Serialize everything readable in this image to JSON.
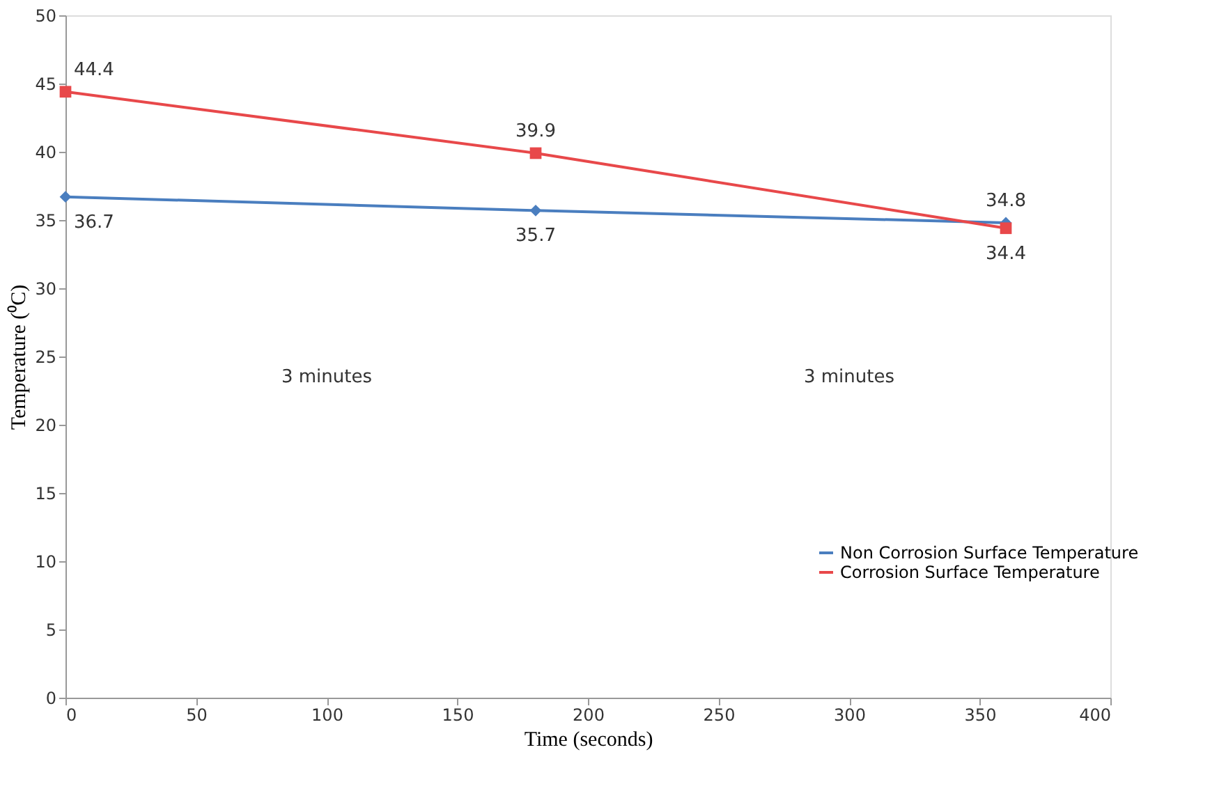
{
  "chart_data": {
    "type": "line",
    "xlabel": "Time (seconds)",
    "ylabel": "Temperature (⁰C)",
    "x": [
      0,
      180,
      360
    ],
    "series": [
      {
        "name": "Non Corrosion Surface Temperature",
        "color": "#4a7ebf",
        "values": [
          36.7,
          35.7,
          34.8
        ],
        "marker": "diamond"
      },
      {
        "name": "Corrosion Surface Temperature",
        "color": "#e8484a",
        "values": [
          44.4,
          39.9,
          34.4
        ],
        "marker": "square"
      }
    ],
    "xlim": [
      0,
      400
    ],
    "xticks": [
      0,
      50,
      100,
      150,
      200,
      250,
      300,
      350,
      400
    ],
    "ylim": [
      0,
      50
    ],
    "yticks": [
      0,
      5,
      10,
      15,
      20,
      25,
      30,
      35,
      40,
      45,
      50
    ],
    "data_labels": true,
    "grid": false,
    "legend": "bottom right",
    "line_style": "solid",
    "annotations": [
      "3 minutes",
      "3 minutes"
    ]
  }
}
